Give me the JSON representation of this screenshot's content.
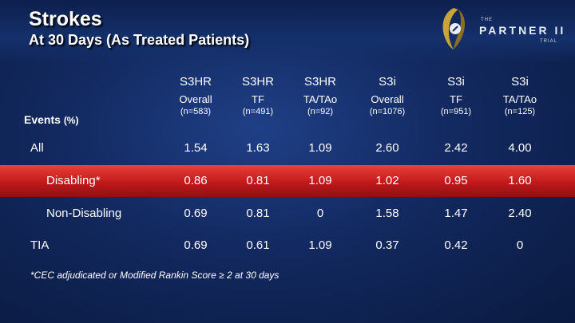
{
  "slide": {
    "title": "Strokes",
    "subtitle": "At 30 Days (As Treated Patients)",
    "logo": {
      "the": "THE",
      "name": "PARTNER II",
      "trial": "TRIAL",
      "icon": "partner-ii-logo-mark"
    }
  },
  "table": {
    "events_label": "Events",
    "events_unit": "(%)",
    "columns": [
      {
        "group": "S3HR",
        "sub": "Overall",
        "n": "(n=583)"
      },
      {
        "group": "S3HR",
        "sub": "TF",
        "n": "(n=491)"
      },
      {
        "group": "S3HR",
        "sub": "TA/TAo",
        "n": "(n=92)"
      },
      {
        "group": "S3i",
        "sub": "Overall",
        "n": "(n=1076)"
      },
      {
        "group": "S3i",
        "sub": "TF",
        "n": "(n=951)"
      },
      {
        "group": "S3i",
        "sub": "TA/TAo",
        "n": "(n=125)"
      }
    ],
    "rows": [
      {
        "label": "All",
        "values": [
          "1.54",
          "1.63",
          "1.09",
          "2.60",
          "2.42",
          "4.00"
        ]
      },
      {
        "label": "Disabling*",
        "values": [
          "0.86",
          "0.81",
          "1.09",
          "1.02",
          "0.95",
          "1.60"
        ]
      },
      {
        "label": "Non-Disabling",
        "values": [
          "0.69",
          "0.81",
          "0",
          "1.58",
          "1.47",
          "2.40"
        ]
      },
      {
        "label": "TIA",
        "values": [
          "0.69",
          "0.61",
          "1.09",
          "0.37",
          "0.42",
          "0"
        ]
      }
    ]
  },
  "footnote": "*CEC adjudicated or Modified Rankin Score ≥ 2 at 30 days",
  "colors": {
    "background": "#12295f",
    "highlight_row": "#c1191b"
  }
}
